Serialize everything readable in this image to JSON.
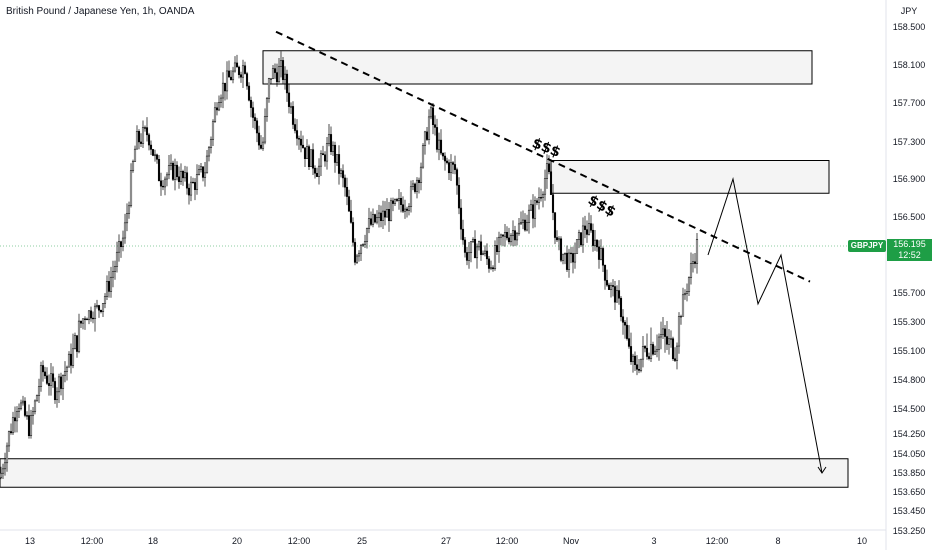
{
  "header": {
    "title": "British Pound / Japanese Yen, 1h, OANDA"
  },
  "chart_data": {
    "type": "candlestick",
    "symbol": "GBPJPY",
    "currency": "JPY",
    "y_ticks": [
      "158.500",
      "158.100",
      "157.700",
      "157.300",
      "156.900",
      "156.500",
      "156.195",
      "155.700",
      "155.300",
      "155.100",
      "154.800",
      "154.500",
      "154.250",
      "154.050",
      "153.850",
      "153.650",
      "153.450",
      "153.250"
    ],
    "x_ticks": [
      "13",
      "12:00",
      "18",
      "20",
      "12:00",
      "25",
      "27",
      "12:00",
      "Nov",
      "3",
      "12:00",
      "8",
      "10"
    ],
    "last_price": "156.195",
    "countdown": "12:52",
    "zones": [
      {
        "from": 157.9,
        "to": 158.25
      },
      {
        "from": 156.75,
        "to": 157.1
      },
      {
        "from": 153.7,
        "to": 154.0
      }
    ],
    "trendline": {
      "start": 158.45,
      "end": 155.82
    },
    "annotations": [
      "$$$",
      "$$$"
    ],
    "projection": [
      156.1,
      156.9,
      155.55,
      156.1,
      153.85
    ]
  }
}
